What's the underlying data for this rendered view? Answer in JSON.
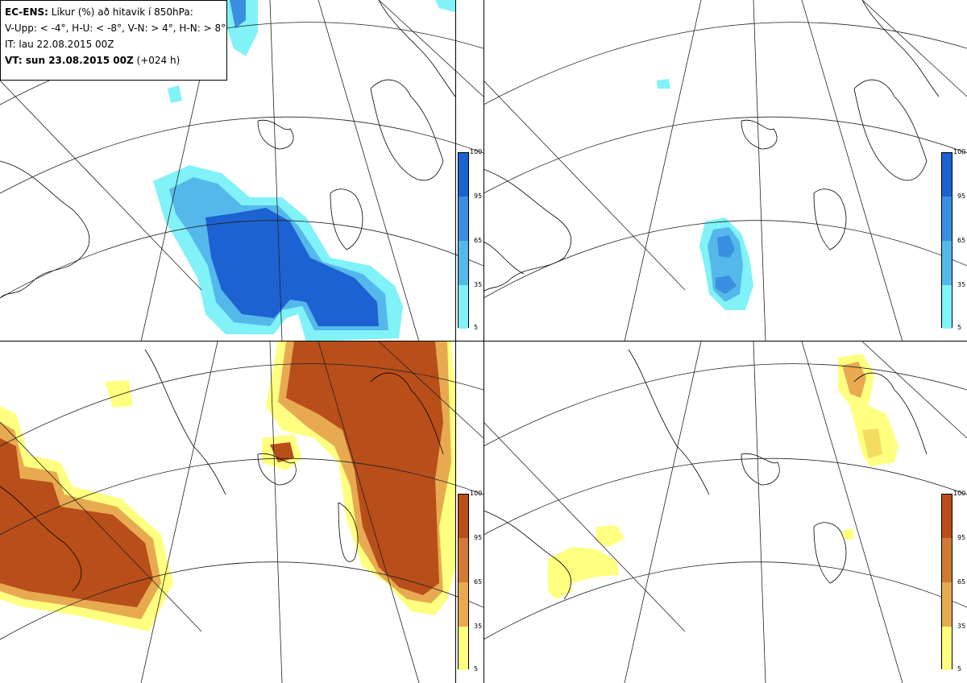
{
  "legend": {
    "title_bold": "EC-ENS:",
    "title_rest": " Líkur (%) að hitavik í 850hPa:",
    "thresholds": "V-Upp: < -4°, H-U: < -8°, V-N: > 4°, H-N: > 8°",
    "init_time": "IT: lau 22.08.2015 00Z",
    "valid_bold": "VT: sun 23.08.2015 00Z",
    "valid_rest": " (+024 h)"
  },
  "colors": {
    "cold": [
      "#80f2f8",
      "#52dff0",
      "#55b8ea",
      "#3a8fe0",
      "#1d62d2"
    ],
    "warm": [
      "#ffff80",
      "#f4dc60",
      "#e8aa50",
      "#d07a35",
      "#b84e1a"
    ]
  },
  "colorbars": {
    "cold": {
      "ticks": [
        "100",
        "95",
        "65",
        "35",
        "5"
      ]
    },
    "warm": {
      "ticks": [
        "100",
        "95",
        "65",
        "35",
        "5"
      ]
    }
  },
  "panels": [
    {
      "name": "V-Upp",
      "palette": "cold"
    },
    {
      "name": "H-U",
      "palette": "cold"
    },
    {
      "name": "V-N",
      "palette": "warm"
    },
    {
      "name": "H-N",
      "palette": "warm"
    }
  ]
}
